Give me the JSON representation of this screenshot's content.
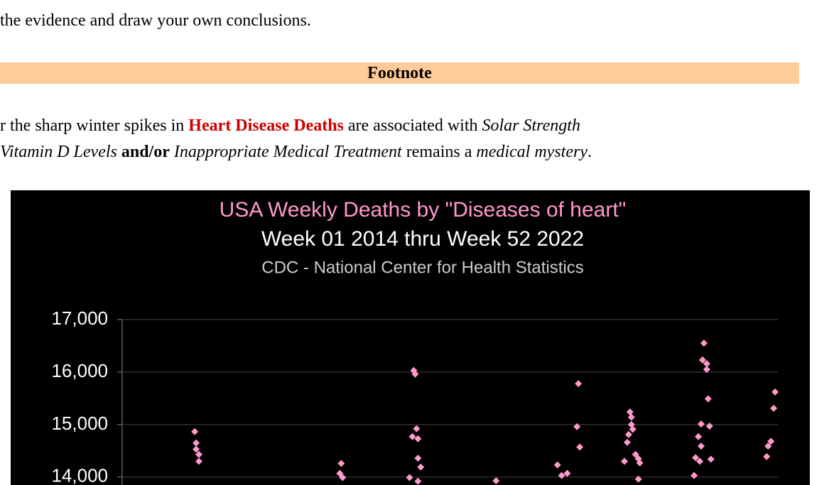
{
  "intro": "the evidence and draw your own conclusions.",
  "footnote_heading": "Footnote",
  "paragraph": {
    "line1": [
      {
        "text": "r the sharp winter spikes in ",
        "style": "plain"
      },
      {
        "text": "Heart Disease Deaths",
        "style": "red"
      },
      {
        "text": " are associated with ",
        "style": "plain"
      },
      {
        "text": "Solar Strength",
        "style": "italic"
      }
    ],
    "line2": [
      {
        "text": "Vitamin D Levels",
        "style": "italic"
      },
      {
        "text": " ",
        "style": "plain"
      },
      {
        "text": "and/or",
        "style": "bold"
      },
      {
        "text": " ",
        "style": "plain"
      },
      {
        "text": "Inappropriate Medical Treatment",
        "style": "italic"
      },
      {
        "text": " remains a ",
        "style": "plain"
      },
      {
        "text": "medical mystery",
        "style": "italic"
      },
      {
        "text": ".",
        "style": "plain"
      }
    ]
  },
  "chart_data": {
    "type": "scatter",
    "title": "USA Weekly Deaths by \"Diseases of heart\"",
    "subtitle": "Week 01 2014 thru Week 52 2022",
    "source": "CDC - National Center for Health Statistics",
    "color": "#ff99cc",
    "grid": true,
    "xlim": [
      0,
      470
    ],
    "ylim": [
      13700,
      17000
    ],
    "yticks": [
      {
        "value": 14000,
        "label": "14,000"
      },
      {
        "value": 15000,
        "label": "15,000"
      },
      {
        "value": 16000,
        "label": "16,000"
      },
      {
        "value": 17000,
        "label": "17,000"
      }
    ],
    "x": [
      52,
      53,
      53,
      55,
      55,
      157,
      156,
      158,
      209,
      210,
      211,
      208,
      212,
      212,
      214,
      206,
      212,
      268,
      312,
      315,
      319,
      327,
      326,
      328,
      364,
      365,
      365,
      366,
      363,
      362,
      368,
      370,
      371,
      360,
      370,
      417,
      416,
      419,
      419,
      420,
      415,
      421,
      413,
      415,
      411,
      422,
      414,
      410,
      468,
      467,
      465,
      463,
      462
    ],
    "values": [
      14865,
      14650,
      14530,
      14300,
      14430,
      14260,
      14070,
      13990,
      16030,
      15960,
      14920,
      14770,
      14730,
      14360,
      14190,
      13990,
      13920,
      13930,
      14230,
      14030,
      14070,
      15780,
      14960,
      14570,
      15240,
      15140,
      15000,
      14910,
      14810,
      14660,
      14430,
      14350,
      14270,
      14300,
      13960,
      16550,
      16230,
      16160,
      16050,
      15490,
      15010,
      14970,
      14770,
      14590,
      14370,
      14340,
      14300,
      14030,
      15620,
      15310,
      14680,
      14590,
      14390
    ]
  }
}
